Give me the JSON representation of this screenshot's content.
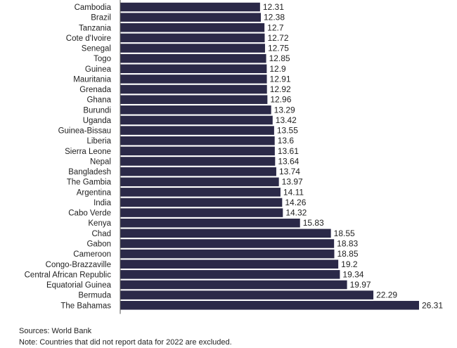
{
  "chart_data": {
    "type": "bar",
    "orientation": "horizontal",
    "categories": [
      "Cambodia",
      "Brazil",
      "Tanzania",
      "Cote d'Ivoire",
      "Senegal",
      "Togo",
      "Guinea",
      "Mauritania",
      "Grenada",
      "Ghana",
      "Burundi",
      "Uganda",
      "Guinea-Bissau",
      "Liberia",
      "Sierra Leone",
      "Nepal",
      "Bangladesh",
      "The Gambia",
      "Argentina",
      "India",
      "Cabo Verde",
      "Kenya",
      "Chad",
      "Gabon",
      "Cameroon",
      "Congo-Brazzaville",
      "Central African Republic",
      "Equatorial Guinea",
      "Bermuda",
      "The Bahamas"
    ],
    "values": [
      12.31,
      12.38,
      12.7,
      12.72,
      12.75,
      12.85,
      12.9,
      12.91,
      12.92,
      12.96,
      13.29,
      13.42,
      13.55,
      13.6,
      13.61,
      13.64,
      13.74,
      13.97,
      14.11,
      14.26,
      14.32,
      15.83,
      18.55,
      18.83,
      18.85,
      19.2,
      19.34,
      19.97,
      22.29,
      26.31
    ],
    "value_labels": [
      "12.31",
      "12.38",
      "12.7",
      "12.72",
      "12.75",
      "12.85",
      "12.9",
      "12.91",
      "12.92",
      "12.96",
      "13.29",
      "13.42",
      "13.55",
      "13.6",
      "13.61",
      "13.64",
      "13.74",
      "13.97",
      "14.11",
      "14.26",
      "14.32",
      "15.83",
      "18.55",
      "18.83",
      "18.85",
      "19.2",
      "19.34",
      "19.97",
      "22.29",
      "26.31"
    ],
    "xlim": [
      0,
      26.31
    ],
    "bar_color": "#2b2948"
  },
  "footer": {
    "source": "Sources: World Bank",
    "note": "Note: Countries that did not report data for 2022 are excluded."
  }
}
